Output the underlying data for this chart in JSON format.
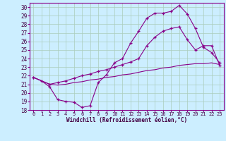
{
  "xlabel": "Windchill (Refroidissement éolien,°C)",
  "bg_color": "#cceeff",
  "line_color": "#880088",
  "grid_color": "#aaccbb",
  "xlim": [
    -0.5,
    23.5
  ],
  "ylim": [
    18,
    30.5
  ],
  "xticks": [
    0,
    1,
    2,
    3,
    4,
    5,
    6,
    7,
    8,
    9,
    10,
    11,
    12,
    13,
    14,
    15,
    16,
    17,
    18,
    19,
    20,
    21,
    22,
    23
  ],
  "yticks": [
    18,
    19,
    20,
    21,
    22,
    23,
    24,
    25,
    26,
    27,
    28,
    29,
    30
  ],
  "line1_x": [
    0,
    1,
    2,
    3,
    4,
    5,
    6,
    7,
    8,
    9,
    10,
    11,
    12,
    13,
    14,
    15,
    16,
    17,
    18,
    19,
    20,
    21,
    22,
    23
  ],
  "line1_y": [
    21.8,
    21.4,
    20.7,
    19.2,
    19.0,
    18.9,
    18.3,
    18.5,
    21.2,
    22.1,
    23.5,
    24.0,
    25.8,
    27.2,
    28.7,
    29.3,
    29.3,
    29.5,
    30.2,
    29.2,
    27.5,
    25.3,
    24.7,
    23.5
  ],
  "line2_x": [
    0,
    2,
    3,
    4,
    5,
    6,
    7,
    8,
    9,
    10,
    11,
    12,
    13,
    14,
    15,
    16,
    17,
    18,
    19,
    20,
    21,
    22,
    23
  ],
  "line2_y": [
    21.8,
    21.0,
    21.2,
    21.4,
    21.7,
    22.0,
    22.2,
    22.5,
    22.7,
    23.0,
    23.3,
    23.6,
    24.0,
    25.5,
    26.5,
    27.2,
    27.5,
    27.7,
    26.2,
    25.0,
    25.5,
    25.5,
    23.2
  ],
  "line3_x": [
    0,
    1,
    2,
    3,
    4,
    5,
    6,
    7,
    8,
    9,
    10,
    11,
    12,
    13,
    14,
    15,
    16,
    17,
    18,
    19,
    20,
    21,
    22,
    23
  ],
  "line3_y": [
    21.8,
    21.4,
    21.0,
    20.9,
    21.0,
    21.2,
    21.3,
    21.5,
    21.6,
    21.8,
    21.9,
    22.1,
    22.2,
    22.4,
    22.6,
    22.7,
    22.9,
    23.0,
    23.2,
    23.3,
    23.4,
    23.4,
    23.5,
    23.3
  ]
}
